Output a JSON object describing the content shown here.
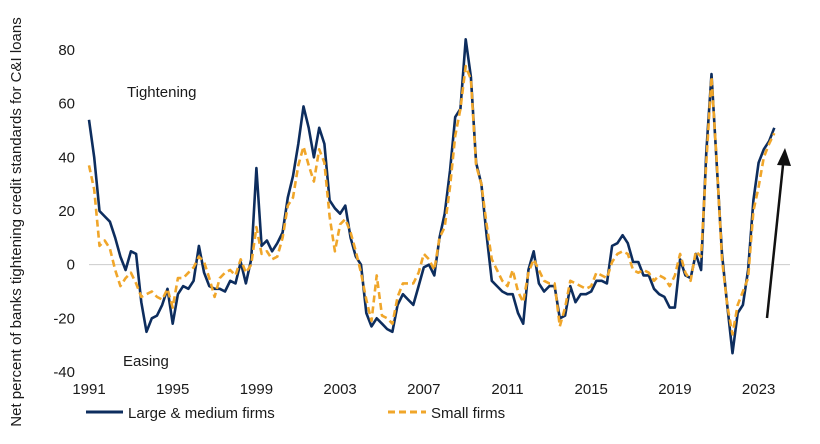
{
  "chart_data": {
    "type": "line",
    "ylabel": "Net percent of banks tightening credit standards for C&I loans",
    "xlabel": "",
    "ylim": [
      -40,
      85
    ],
    "xlim": [
      1991,
      2024.5
    ],
    "y_ticks": [
      80,
      60,
      40,
      20,
      0,
      -20,
      -40
    ],
    "x_ticks": [
      "1991",
      "1995",
      "1999",
      "2003",
      "2007",
      "2011",
      "2015",
      "2019",
      "2023"
    ],
    "annotations": {
      "top": "Tightening",
      "bottom": "Easing"
    },
    "grid": false,
    "zero_line": true,
    "legend_position": "bottom",
    "series": [
      {
        "name": "Large & medium firms",
        "color": "#0d2d5e",
        "style": "solid",
        "points": [
          [
            1991.0,
            54
          ],
          [
            1991.25,
            40
          ],
          [
            1991.5,
            20
          ],
          [
            1991.75,
            18
          ],
          [
            1992.0,
            16
          ],
          [
            1992.25,
            10
          ],
          [
            1992.5,
            3
          ],
          [
            1992.75,
            -2
          ],
          [
            1993.0,
            5
          ],
          [
            1993.25,
            4
          ],
          [
            1993.5,
            -14
          ],
          [
            1993.75,
            -25
          ],
          [
            1994.0,
            -20
          ],
          [
            1994.25,
            -19
          ],
          [
            1994.5,
            -15
          ],
          [
            1994.75,
            -9
          ],
          [
            1995.0,
            -22
          ],
          [
            1995.25,
            -11
          ],
          [
            1995.5,
            -8
          ],
          [
            1995.75,
            -9
          ],
          [
            1996.0,
            -6
          ],
          [
            1996.25,
            7
          ],
          [
            1996.5,
            -3
          ],
          [
            1996.75,
            -8
          ],
          [
            1997.0,
            -9
          ],
          [
            1997.25,
            -9
          ],
          [
            1997.5,
            -10
          ],
          [
            1997.75,
            -6
          ],
          [
            1998.0,
            -7
          ],
          [
            1998.25,
            1
          ],
          [
            1998.5,
            -7
          ],
          [
            1998.75,
            2
          ],
          [
            1999.0,
            36
          ],
          [
            1999.25,
            7
          ],
          [
            1999.5,
            9
          ],
          [
            1999.75,
            5
          ],
          [
            2000.0,
            8
          ],
          [
            2000.25,
            12
          ],
          [
            2000.5,
            25
          ],
          [
            2000.75,
            33
          ],
          [
            2001.0,
            45
          ],
          [
            2001.25,
            59
          ],
          [
            2001.5,
            51
          ],
          [
            2001.75,
            40
          ],
          [
            2002.0,
            51
          ],
          [
            2002.25,
            45
          ],
          [
            2002.5,
            24
          ],
          [
            2002.75,
            21
          ],
          [
            2003.0,
            19
          ],
          [
            2003.25,
            22
          ],
          [
            2003.5,
            10
          ],
          [
            2003.75,
            3
          ],
          [
            2004.0,
            0
          ],
          [
            2004.25,
            -18
          ],
          [
            2004.5,
            -23
          ],
          [
            2004.75,
            -20
          ],
          [
            2005.0,
            -22
          ],
          [
            2005.25,
            -24
          ],
          [
            2005.5,
            -25
          ],
          [
            2005.75,
            -15
          ],
          [
            2006.0,
            -11
          ],
          [
            2006.25,
            -13
          ],
          [
            2006.5,
            -15
          ],
          [
            2006.75,
            -8
          ],
          [
            2007.0,
            -1
          ],
          [
            2007.25,
            0
          ],
          [
            2007.5,
            -4
          ],
          [
            2007.75,
            10
          ],
          [
            2008.0,
            19
          ],
          [
            2008.25,
            35
          ],
          [
            2008.5,
            55
          ],
          [
            2008.75,
            58
          ],
          [
            2009.0,
            84
          ],
          [
            2009.25,
            70
          ],
          [
            2009.5,
            38
          ],
          [
            2009.75,
            30
          ],
          [
            2010.0,
            11
          ],
          [
            2010.25,
            -6
          ],
          [
            2010.5,
            -8
          ],
          [
            2010.75,
            -10
          ],
          [
            2011.0,
            -11
          ],
          [
            2011.25,
            -11
          ],
          [
            2011.5,
            -18
          ],
          [
            2011.75,
            -22
          ],
          [
            2012.0,
            -2
          ],
          [
            2012.25,
            5
          ],
          [
            2012.5,
            -7
          ],
          [
            2012.75,
            -10
          ],
          [
            2013.0,
            -8
          ],
          [
            2013.25,
            -8
          ],
          [
            2013.5,
            -20
          ],
          [
            2013.75,
            -19
          ],
          [
            2014.0,
            -8
          ],
          [
            2014.25,
            -14
          ],
          [
            2014.5,
            -11
          ],
          [
            2014.75,
            -11
          ],
          [
            2015.0,
            -10
          ],
          [
            2015.25,
            -6
          ],
          [
            2015.5,
            -6
          ],
          [
            2015.75,
            -7
          ],
          [
            2016.0,
            7
          ],
          [
            2016.25,
            8
          ],
          [
            2016.5,
            11
          ],
          [
            2016.75,
            8
          ],
          [
            2017.0,
            1
          ],
          [
            2017.25,
            1
          ],
          [
            2017.5,
            -4
          ],
          [
            2017.75,
            -4
          ],
          [
            2018.0,
            -9
          ],
          [
            2018.25,
            -11
          ],
          [
            2018.5,
            -12
          ],
          [
            2018.75,
            -16
          ],
          [
            2019.0,
            -16
          ],
          [
            2019.25,
            2
          ],
          [
            2019.5,
            -4
          ],
          [
            2019.75,
            -5
          ],
          [
            2020.0,
            4
          ],
          [
            2020.25,
            -2
          ],
          [
            2020.5,
            42
          ],
          [
            2020.75,
            71
          ],
          [
            2021.0,
            37
          ],
          [
            2021.25,
            4
          ],
          [
            2021.5,
            -15
          ],
          [
            2021.75,
            -33
          ],
          [
            2022.0,
            -18
          ],
          [
            2022.25,
            -15
          ],
          [
            2022.5,
            -2
          ],
          [
            2022.75,
            24
          ],
          [
            2023.0,
            38
          ],
          [
            2023.25,
            43
          ],
          [
            2023.5,
            46
          ],
          [
            2023.75,
            51
          ]
        ]
      },
      {
        "name": "Small firms",
        "color": "#f0a62a",
        "style": "dashed",
        "points": [
          [
            1991.0,
            37
          ],
          [
            1991.25,
            28
          ],
          [
            1991.5,
            7
          ],
          [
            1991.75,
            9
          ],
          [
            1992.0,
            6
          ],
          [
            1992.25,
            -2
          ],
          [
            1992.5,
            -8
          ],
          [
            1992.75,
            -5
          ],
          [
            1993.0,
            -3
          ],
          [
            1993.25,
            -7
          ],
          [
            1993.5,
            -12
          ],
          [
            1993.75,
            -11
          ],
          [
            1994.0,
            -10
          ],
          [
            1994.25,
            -12
          ],
          [
            1994.5,
            -13
          ],
          [
            1994.75,
            -9
          ],
          [
            1995.0,
            -16
          ],
          [
            1995.25,
            -5
          ],
          [
            1995.5,
            -5
          ],
          [
            1995.75,
            -3
          ],
          [
            1996.0,
            -1
          ],
          [
            1996.25,
            3
          ],
          [
            1996.5,
            1
          ],
          [
            1996.75,
            -5
          ],
          [
            1997.0,
            -12
          ],
          [
            1997.25,
            -5
          ],
          [
            1997.5,
            -3
          ],
          [
            1997.75,
            -2
          ],
          [
            1998.0,
            -4
          ],
          [
            1998.25,
            2
          ],
          [
            1998.5,
            -3
          ],
          [
            1998.75,
            0
          ],
          [
            1999.0,
            14
          ],
          [
            1999.25,
            4
          ],
          [
            1999.5,
            5
          ],
          [
            1999.75,
            2
          ],
          [
            2000.0,
            3
          ],
          [
            2000.25,
            10
          ],
          [
            2000.5,
            22
          ],
          [
            2000.75,
            25
          ],
          [
            2001.0,
            37
          ],
          [
            2001.25,
            44
          ],
          [
            2001.5,
            37
          ],
          [
            2001.75,
            31
          ],
          [
            2002.0,
            43
          ],
          [
            2002.25,
            38
          ],
          [
            2002.5,
            18
          ],
          [
            2002.75,
            5
          ],
          [
            2003.0,
            15
          ],
          [
            2003.25,
            17
          ],
          [
            2003.5,
            12
          ],
          [
            2003.75,
            5
          ],
          [
            2004.0,
            -3
          ],
          [
            2004.25,
            -13
          ],
          [
            2004.5,
            -21
          ],
          [
            2004.75,
            -4
          ],
          [
            2005.0,
            -19
          ],
          [
            2005.25,
            -20
          ],
          [
            2005.5,
            -22
          ],
          [
            2005.75,
            -12
          ],
          [
            2006.0,
            -7
          ],
          [
            2006.25,
            -7
          ],
          [
            2006.5,
            -7
          ],
          [
            2006.75,
            -3
          ],
          [
            2007.0,
            4
          ],
          [
            2007.25,
            2
          ],
          [
            2007.5,
            -2
          ],
          [
            2007.75,
            10
          ],
          [
            2008.0,
            14
          ],
          [
            2008.25,
            29
          ],
          [
            2008.5,
            48
          ],
          [
            2008.75,
            58
          ],
          [
            2009.0,
            74
          ],
          [
            2009.25,
            69
          ],
          [
            2009.5,
            37
          ],
          [
            2009.75,
            30
          ],
          [
            2010.0,
            15
          ],
          [
            2010.25,
            2
          ],
          [
            2010.5,
            -2
          ],
          [
            2010.75,
            -6
          ],
          [
            2011.0,
            -8
          ],
          [
            2011.25,
            -2
          ],
          [
            2011.5,
            -10
          ],
          [
            2011.75,
            -14
          ],
          [
            2012.0,
            -3
          ],
          [
            2012.25,
            2
          ],
          [
            2012.5,
            -2
          ],
          [
            2012.75,
            -6
          ],
          [
            2013.0,
            -7
          ],
          [
            2013.25,
            -7
          ],
          [
            2013.5,
            -23
          ],
          [
            2013.75,
            -16
          ],
          [
            2014.0,
            -6
          ],
          [
            2014.25,
            -7
          ],
          [
            2014.5,
            -8
          ],
          [
            2014.75,
            -9
          ],
          [
            2015.0,
            -8
          ],
          [
            2015.25,
            -3
          ],
          [
            2015.5,
            -4
          ],
          [
            2015.75,
            -5
          ],
          [
            2016.0,
            1
          ],
          [
            2016.25,
            4
          ],
          [
            2016.5,
            5
          ],
          [
            2016.75,
            4
          ],
          [
            2017.0,
            -2
          ],
          [
            2017.25,
            -3
          ],
          [
            2017.5,
            -2
          ],
          [
            2017.75,
            -3
          ],
          [
            2018.0,
            -6
          ],
          [
            2018.25,
            -4
          ],
          [
            2018.5,
            -5
          ],
          [
            2018.75,
            -8
          ],
          [
            2019.0,
            -4
          ],
          [
            2019.25,
            4
          ],
          [
            2019.5,
            -3
          ],
          [
            2019.75,
            -6
          ],
          [
            2020.0,
            5
          ],
          [
            2020.25,
            3
          ],
          [
            2020.5,
            38
          ],
          [
            2020.75,
            70
          ],
          [
            2021.0,
            38
          ],
          [
            2021.25,
            2
          ],
          [
            2021.5,
            -15
          ],
          [
            2021.75,
            -26
          ],
          [
            2022.0,
            -15
          ],
          [
            2022.25,
            -10
          ],
          [
            2022.5,
            -5
          ],
          [
            2022.75,
            20
          ],
          [
            2023.0,
            29
          ],
          [
            2023.25,
            40
          ],
          [
            2023.5,
            45
          ],
          [
            2023.75,
            49
          ]
        ]
      }
    ]
  }
}
